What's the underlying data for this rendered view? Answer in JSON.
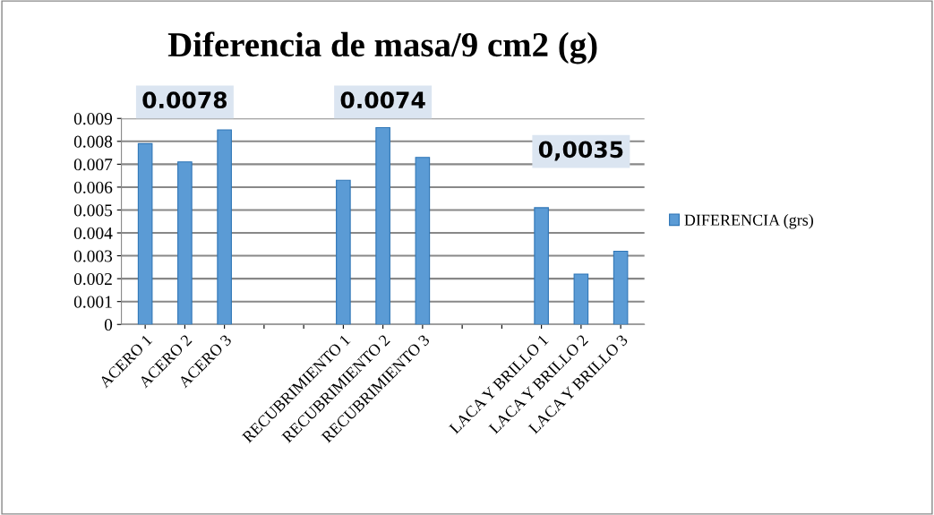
{
  "chart_data": {
    "type": "bar",
    "title": "Diferencia de masa/9 cm2 (g)",
    "categories": [
      "ACERO 1",
      "ACERO 2",
      "ACERO 3",
      null,
      null,
      "RECUBRIMIENTO 1",
      "RECUBRIMIENTO 2",
      "RECUBRIMIENTO 3",
      null,
      null,
      "LACA Y BRILLO 1",
      "LACA Y BRILLO 2",
      "LACA Y BRILLO 3"
    ],
    "series": [
      {
        "name": "DIFERENCIA (grs)",
        "color": "#5b9bd5",
        "values": [
          0.0079,
          0.0071,
          0.0085,
          null,
          null,
          0.0063,
          0.0086,
          0.0073,
          null,
          null,
          0.0051,
          0.0022,
          0.0032
        ]
      }
    ],
    "ylim": [
      0,
      0.009
    ],
    "yticks": [
      0,
      0.001,
      0.002,
      0.003,
      0.004,
      0.005,
      0.006,
      0.007,
      0.008,
      0.009
    ],
    "grid": "y",
    "legend": "right",
    "annotations": [
      "0.0078",
      "0.0074",
      "0,0035"
    ]
  }
}
